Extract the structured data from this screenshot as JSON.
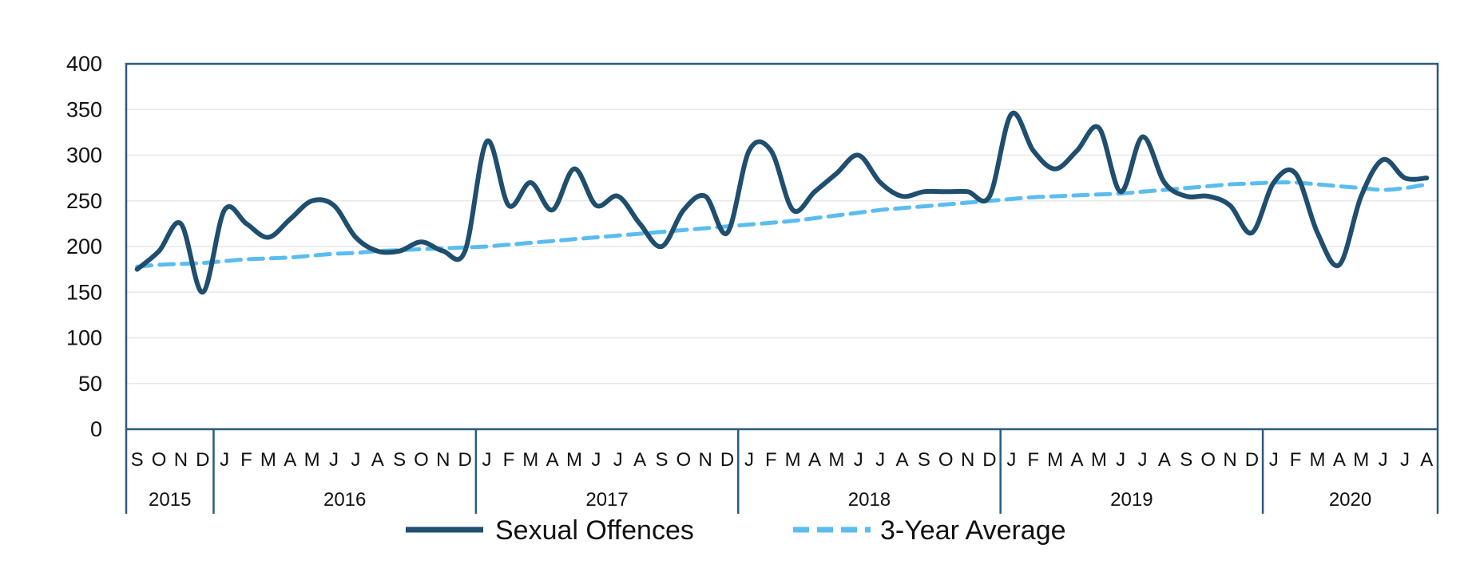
{
  "chart_data": {
    "type": "line",
    "title": "",
    "xlabel": "",
    "ylabel": "",
    "ylim": [
      0,
      400
    ],
    "yticks": [
      0,
      50,
      100,
      150,
      200,
      250,
      300,
      350,
      400
    ],
    "grid": true,
    "legend_position": "bottom",
    "months": [
      "S",
      "O",
      "N",
      "D",
      "J",
      "F",
      "M",
      "A",
      "M",
      "J",
      "J",
      "A",
      "S",
      "O",
      "N",
      "D",
      "J",
      "F",
      "M",
      "A",
      "M",
      "J",
      "J",
      "A",
      "S",
      "O",
      "N",
      "D",
      "J",
      "F",
      "M",
      "A",
      "M",
      "J",
      "J",
      "A",
      "S",
      "O",
      "N",
      "D",
      "J",
      "F",
      "M",
      "A",
      "M",
      "J",
      "J",
      "A",
      "S",
      "O",
      "N",
      "D",
      "J",
      "F",
      "M",
      "A",
      "M",
      "J",
      "J",
      "A"
    ],
    "years": [
      {
        "label": "2015",
        "start": 0,
        "count": 4
      },
      {
        "label": "2016",
        "start": 4,
        "count": 12
      },
      {
        "label": "2017",
        "start": 16,
        "count": 12
      },
      {
        "label": "2018",
        "start": 28,
        "count": 12
      },
      {
        "label": "2019",
        "start": 40,
        "count": 12
      },
      {
        "label": "2020",
        "start": 52,
        "count": 8
      }
    ],
    "series": [
      {
        "name": "Sexual Offences",
        "style": "solid",
        "color": "#1f4e6e",
        "values": [
          175,
          195,
          225,
          150,
          240,
          225,
          210,
          230,
          250,
          245,
          210,
          195,
          195,
          205,
          195,
          195,
          315,
          245,
          270,
          240,
          285,
          245,
          255,
          225,
          200,
          240,
          255,
          215,
          305,
          305,
          240,
          260,
          280,
          300,
          270,
          255,
          260,
          260,
          260,
          255,
          345,
          305,
          285,
          305,
          330,
          260,
          320,
          270,
          255,
          255,
          245,
          215,
          270,
          280,
          215,
          180,
          255,
          295,
          275,
          275
        ]
      },
      {
        "name": "3-Year Average",
        "style": "dashed",
        "color": "#5bbcf0",
        "values": [
          178,
          180,
          181,
          182,
          184,
          186,
          187,
          188,
          190,
          192,
          193,
          195,
          196,
          197,
          198,
          199,
          200,
          202,
          204,
          206,
          208,
          210,
          212,
          214,
          216,
          218,
          220,
          222,
          224,
          226,
          228,
          231,
          234,
          237,
          240,
          242,
          244,
          246,
          248,
          250,
          252,
          254,
          255,
          256,
          257,
          258,
          260,
          262,
          264,
          266,
          268,
          269,
          270,
          270,
          268,
          266,
          264,
          262,
          264,
          268
        ]
      }
    ]
  }
}
